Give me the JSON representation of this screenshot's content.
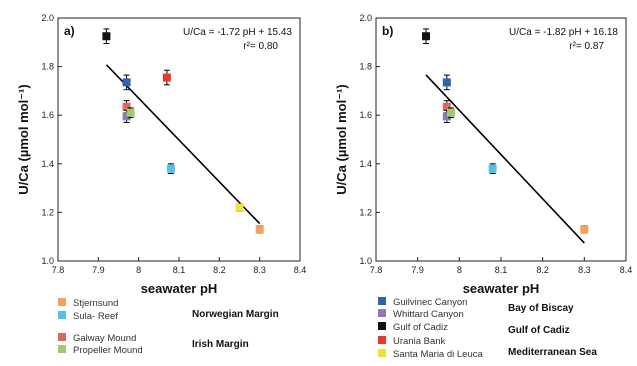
{
  "series_colors": {
    "Stjernsund": "#f5a05a",
    "Sula- Reef": "#4fc3e6",
    "Galway Mound": "#d66a62",
    "Propeller Mound": "#a4c96a",
    "Guilvinec Canyon": "#2b64a8",
    "Whittard Canyon": "#8c78bb",
    "Gulf of Cadiz": "#111111",
    "Urania Bank": "#e83a26",
    "Santa Maria di Leuca": "#f0e236"
  },
  "chart_data": [
    {
      "type": "scatter",
      "panel_label": "a)",
      "xlabel": "seawater pH",
      "ylabel": "U/Ca (µmol mol⁻¹)",
      "xlim": [
        7.8,
        8.4
      ],
      "ylim": [
        1.0,
        2.0
      ],
      "x_ticks": [
        "7.8",
        "7.9",
        "8",
        "8.1",
        "8.2",
        "8.3",
        "8.4"
      ],
      "y_ticks": [
        "1.0",
        "1.2",
        "1.4",
        "1.6",
        "1.8",
        "2.0"
      ],
      "grid": false,
      "equation": "U/Ca = -1.72 pH + 15.43",
      "r2": "r²= 0.80",
      "regression": {
        "slope": -1.72,
        "intercept": 15.43,
        "x_range": [
          7.92,
          8.3
        ]
      },
      "points": [
        {
          "series": "Gulf of Cadiz",
          "x": 7.92,
          "y": 1.925,
          "err": 0.03
        },
        {
          "series": "Guilvinec Canyon",
          "x": 7.97,
          "y": 1.735,
          "err": 0.03
        },
        {
          "series": "Galway Mound",
          "x": 7.97,
          "y": 1.635,
          "err": 0.025
        },
        {
          "series": "Whittard Canyon",
          "x": 7.97,
          "y": 1.595,
          "err": 0.025
        },
        {
          "series": "Propeller Mound",
          "x": 7.98,
          "y": 1.61,
          "err": 0.02
        },
        {
          "series": "Urania Bank",
          "x": 8.07,
          "y": 1.755,
          "err": 0.03
        },
        {
          "series": "Sula- Reef",
          "x": 8.08,
          "y": 1.38,
          "err": 0.02
        },
        {
          "series": "Santa Maria di Leuca",
          "x": 8.25,
          "y": 1.22,
          "err": 0.015
        },
        {
          "series": "Stjernsund",
          "x": 8.3,
          "y": 1.13,
          "err": 0.015
        }
      ]
    },
    {
      "type": "scatter",
      "panel_label": "b)",
      "xlabel": "seawater pH",
      "ylabel": "U/Ca (µmol mol⁻¹)",
      "xlim": [
        7.8,
        8.4
      ],
      "ylim": [
        1.0,
        2.0
      ],
      "x_ticks": [
        "7.8",
        "7.9",
        "8",
        "8.1",
        "8.2",
        "8.3",
        "8.4"
      ],
      "y_ticks": [
        "1.0",
        "1.2",
        "1.4",
        "1.6",
        "1.8",
        "2.0"
      ],
      "grid": false,
      "equation": "U/Ca = -1.82 pH + 16.18",
      "r2": "r²= 0.87",
      "regression": {
        "slope": -1.82,
        "intercept": 16.18,
        "x_range": [
          7.92,
          8.3
        ]
      },
      "points": [
        {
          "series": "Gulf of Cadiz",
          "x": 7.92,
          "y": 1.925,
          "err": 0.03
        },
        {
          "series": "Guilvinec Canyon",
          "x": 7.97,
          "y": 1.735,
          "err": 0.03
        },
        {
          "series": "Galway Mound",
          "x": 7.97,
          "y": 1.635,
          "err": 0.025
        },
        {
          "series": "Whittard Canyon",
          "x": 7.97,
          "y": 1.595,
          "err": 0.025
        },
        {
          "series": "Propeller Mound",
          "x": 7.98,
          "y": 1.61,
          "err": 0.02
        },
        {
          "series": "Sula- Reef",
          "x": 8.08,
          "y": 1.38,
          "err": 0.02
        },
        {
          "series": "Stjernsund",
          "x": 8.3,
          "y": 1.13,
          "err": 0.015
        }
      ]
    }
  ],
  "legend_a": {
    "items": [
      {
        "label": "Stjernsund",
        "color": "#f5a05a"
      },
      {
        "label": "Sula- Reef",
        "color": "#4fc3e6"
      },
      {
        "label": "Galway Mound",
        "color": "#d66a62"
      },
      {
        "label": "Propeller Mound",
        "color": "#a4c96a"
      }
    ],
    "regions": [
      "Norwegian Margin",
      "Irish Margin"
    ]
  },
  "legend_b": {
    "items": [
      {
        "label": "Guilvinec Canyon",
        "color": "#2b64a8"
      },
      {
        "label": "Whittard Canyon",
        "color": "#8c78bb"
      },
      {
        "label": "Gulf of Cadiz",
        "color": "#111111"
      },
      {
        "label": "Urania Bank",
        "color": "#e83a26"
      },
      {
        "label": "Santa Maria di Leuca",
        "color": "#f0e236"
      }
    ],
    "regions": [
      "Bay of Biscay",
      "Gulf of Cadiz",
      "Mediterranean Sea"
    ]
  }
}
